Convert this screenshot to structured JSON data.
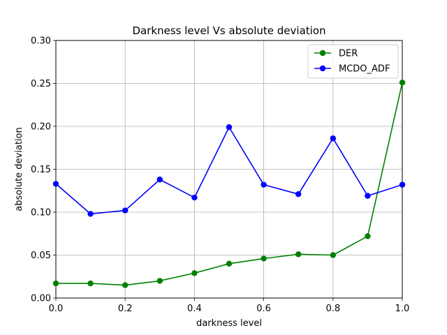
{
  "chart_data": {
    "type": "line",
    "title": "Darkness level Vs absolute deviation",
    "xlabel": "darkness level",
    "ylabel": "absolute deviation",
    "xlim": [
      0.0,
      1.0
    ],
    "ylim": [
      0.0,
      0.3
    ],
    "xticks": [
      "0.0",
      "0.2",
      "0.4",
      "0.6",
      "0.8",
      "1.0"
    ],
    "yticks": [
      "0.00",
      "0.05",
      "0.10",
      "0.15",
      "0.20",
      "0.25",
      "0.30"
    ],
    "grid": true,
    "legend_position": "top-right",
    "x": [
      0.0,
      0.1,
      0.2,
      0.3,
      0.4,
      0.5,
      0.6,
      0.7,
      0.8,
      0.9,
      1.0
    ],
    "series": [
      {
        "name": "DER",
        "color": "#008000",
        "values": [
          0.017,
          0.017,
          0.015,
          0.02,
          0.029,
          0.04,
          0.046,
          0.051,
          0.05,
          0.072,
          0.251
        ]
      },
      {
        "name": "MCDO_ADF",
        "color": "#0000ff",
        "values": [
          0.133,
          0.098,
          0.102,
          0.138,
          0.117,
          0.199,
          0.132,
          0.121,
          0.186,
          0.119,
          0.132
        ]
      }
    ]
  }
}
